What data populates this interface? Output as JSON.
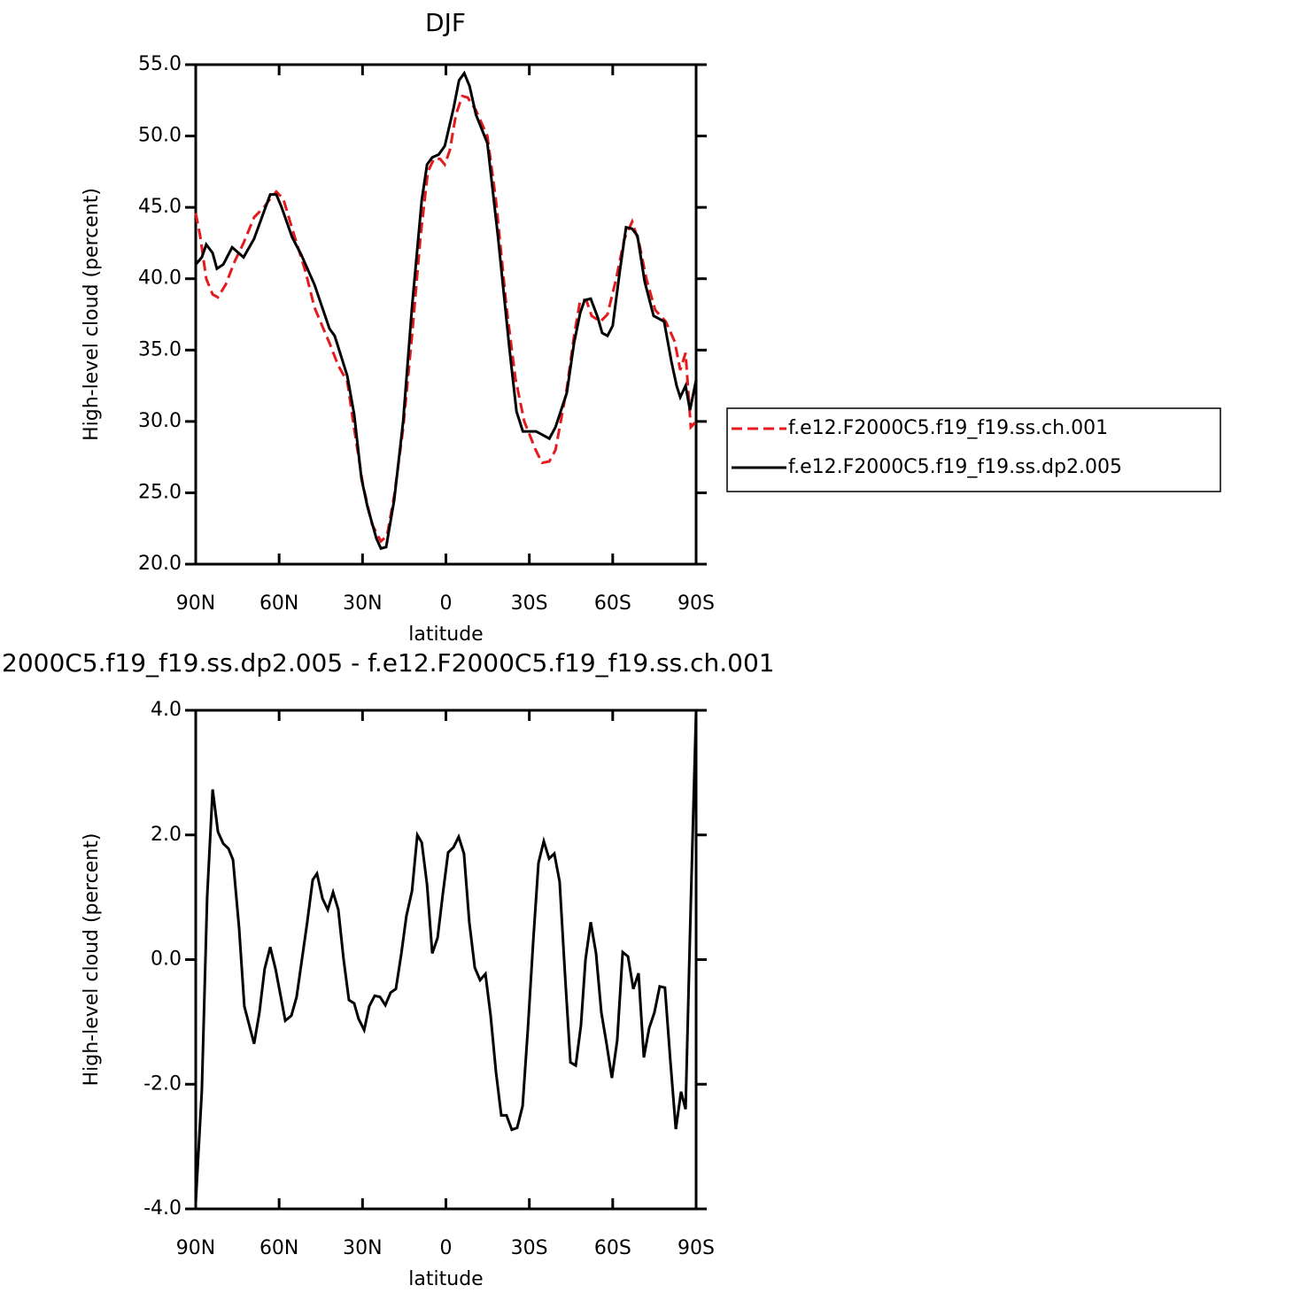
{
  "chart_data": [
    {
      "type": "line",
      "title": "DJF",
      "xlabel": "latitude",
      "ylabel": "High-level cloud (percent)",
      "xlim": [
        90,
        -90
      ],
      "xticks": [
        {
          "value": 90,
          "label": "90N"
        },
        {
          "value": 60,
          "label": "60N"
        },
        {
          "value": 30,
          "label": "30N"
        },
        0,
        {
          "value": -30,
          "label": "30S"
        },
        {
          "value": -60,
          "label": "60S"
        },
        {
          "value": -90,
          "label": "90S"
        }
      ],
      "ylim": [
        20,
        55
      ],
      "yticks": [
        {
          "value": 20,
          "label": "20.0"
        },
        {
          "value": 25,
          "label": "25.0"
        },
        {
          "value": 30,
          "label": "30.0"
        },
        {
          "value": 35,
          "label": "35.0"
        },
        {
          "value": 40,
          "label": "40.0"
        },
        {
          "value": 45,
          "label": "45.0"
        },
        {
          "value": 50,
          "label": "50.0"
        },
        {
          "value": 55,
          "label": "55.0"
        }
      ],
      "legend": "right",
      "series": [
        {
          "name": "f.e12.F2000C5.f19_f19.ss.ch.001",
          "color": "#e41a1c",
          "linestyle": "dashed",
          "x": [
            90,
            88.4,
            86.2,
            83.9,
            82.0,
            79.2,
            76.0,
            72.8,
            69.0,
            65.5,
            63.2,
            61.0,
            58.5,
            55.3,
            50.5,
            47.3,
            44.1,
            41.9,
            38.7,
            35.5,
            33.0,
            29.8,
            26.6,
            23.4,
            21.2,
            18.6,
            15.4,
            12.2,
            9.1,
            6.5,
            4.3,
            2.1,
            0.4,
            -1.4,
            -3.6,
            -5.9,
            -7.8,
            -10.8,
            -14.9,
            -18.0,
            -21.8,
            -25.0,
            -28.2,
            -32.3,
            -34.6,
            -37.2,
            -39.4,
            -43.5,
            -46.1,
            -48.3,
            -50.5,
            -52.4,
            -55.6,
            -58.1,
            -61.0,
            -64.2,
            -67.0,
            -69.5,
            -72.1,
            -75.3,
            -79.1,
            -82.3,
            -84.3,
            -86.2,
            -88.1,
            -90
          ],
          "values": [
            44.6,
            43.0,
            40.0,
            38.9,
            38.7,
            39.6,
            41.2,
            42.5,
            44.3,
            45.0,
            45.6,
            46.1,
            45.6,
            43.5,
            40.5,
            38.0,
            36.5,
            35.5,
            33.9,
            32.8,
            29.5,
            25.5,
            22.8,
            21.6,
            22.0,
            24.8,
            29.5,
            36.0,
            43.0,
            47.5,
            48.4,
            48.4,
            48.0,
            49.0,
            51.5,
            52.8,
            52.7,
            51.8,
            50.0,
            45.5,
            38.0,
            33.0,
            30.0,
            28.0,
            27.1,
            27.2,
            28.0,
            32.3,
            36.0,
            38.5,
            38.5,
            37.4,
            37.0,
            37.5,
            39.8,
            42.8,
            44.0,
            42.5,
            40.0,
            37.8,
            37.0,
            35.6,
            33.6,
            34.8,
            29.6,
            30.0
          ]
        },
        {
          "name": "f.e12.F2000C5.f19_f19.ss.dp2.005",
          "color": "#000000",
          "linestyle": "solid",
          "x": [
            90,
            87.8,
            86.2,
            83.9,
            82.4,
            80.1,
            76.9,
            72.8,
            69.0,
            63.2,
            61.0,
            59.1,
            55.3,
            52.1,
            47.3,
            41.9,
            40.0,
            35.5,
            33.0,
            30.4,
            28.2,
            25.0,
            23.4,
            21.5,
            18.6,
            15.4,
            12.2,
            8.7,
            6.8,
            4.9,
            2.6,
            0.4,
            -2.8,
            -4.7,
            -6.6,
            -8.5,
            -10.8,
            -14.9,
            -18.7,
            -22.9,
            -25.4,
            -27.7,
            -32.4,
            -37.2,
            -39.4,
            -43.5,
            -46.1,
            -48.3,
            -49.9,
            -52.1,
            -54.6,
            -56.2,
            -58.1,
            -60.0,
            -62.6,
            -64.8,
            -67.0,
            -68.9,
            -71.5,
            -74.7,
            -78.5,
            -81.1,
            -83.0,
            -84.3,
            -86.2,
            -87.8,
            -90
          ],
          "values": [
            41.0,
            41.5,
            42.4,
            41.8,
            40.7,
            41.0,
            42.2,
            41.5,
            42.8,
            45.9,
            45.9,
            45.0,
            42.9,
            41.7,
            39.6,
            36.5,
            36.0,
            33.2,
            30.5,
            26.0,
            24.0,
            21.8,
            21.1,
            21.2,
            24.5,
            30.0,
            38.0,
            45.5,
            48.0,
            48.5,
            48.7,
            49.3,
            52.0,
            53.9,
            54.4,
            53.5,
            51.5,
            49.5,
            43.0,
            35.0,
            30.7,
            29.3,
            29.3,
            28.8,
            29.6,
            32.0,
            35.5,
            37.6,
            38.5,
            38.6,
            37.3,
            36.2,
            36.0,
            36.7,
            40.6,
            43.6,
            43.5,
            43.0,
            39.8,
            37.4,
            37.0,
            34.2,
            32.5,
            31.7,
            32.5,
            30.8,
            32.9
          ]
        }
      ]
    },
    {
      "type": "line",
      "title": "2000C5.f19_f19.ss.dp2.005 - f.e12.F2000C5.f19_f19.ss.ch.001",
      "xlabel": "latitude",
      "ylabel": "High-level cloud (percent)",
      "xlim": [
        90,
        -90
      ],
      "xticks": [
        {
          "value": 90,
          "label": "90N"
        },
        {
          "value": 60,
          "label": "60N"
        },
        {
          "value": 30,
          "label": "30N"
        },
        0,
        {
          "value": -30,
          "label": "30S"
        },
        {
          "value": -60,
          "label": "60S"
        },
        {
          "value": -90,
          "label": "90S"
        }
      ],
      "ylim": [
        -4,
        4
      ],
      "yticks": [
        {
          "value": -4,
          "label": "-4.0"
        },
        {
          "value": -2,
          "label": "-2.0"
        },
        {
          "value": 0,
          "label": "0.0"
        },
        {
          "value": 2,
          "label": "2.0"
        },
        {
          "value": 4,
          "label": "4.0"
        }
      ],
      "series": [
        {
          "color": "#000000",
          "linestyle": "solid",
          "x": [
            90,
            87.8,
            85.9,
            83.9,
            82.0,
            80.1,
            78.2,
            76.6,
            74.4,
            72.5,
            69.0,
            67.1,
            65.2,
            63.2,
            61.3,
            59.4,
            57.8,
            55.6,
            53.7,
            51.8,
            49.9,
            47.9,
            46.4,
            44.4,
            42.5,
            40.6,
            38.7,
            36.8,
            34.9,
            33.0,
            31.4,
            29.4,
            27.6,
            25.6,
            23.7,
            21.8,
            19.9,
            18.0,
            16.1,
            14.2,
            12.2,
            10.3,
            8.7,
            6.8,
            4.9,
            3.0,
            1.1,
            -0.8,
            -2.7,
            -4.6,
            -6.5,
            -8.4,
            -10.4,
            -12.3,
            -14.2,
            -16.1,
            -18.0,
            -19.9,
            -21.8,
            -23.7,
            -25.6,
            -27.6,
            -29.5,
            -31.4,
            -33.3,
            -35.2,
            -37.1,
            -39.0,
            -40.9,
            -42.8,
            -44.8,
            -46.7,
            -48.6,
            -50.2,
            -52.1,
            -54.0,
            -55.9,
            -57.8,
            -59.7,
            -61.6,
            -63.6,
            -65.5,
            -67.4,
            -69.3,
            -71.2,
            -73.1,
            -75.0,
            -76.9,
            -78.8,
            -80.7,
            -82.7,
            -84.6,
            -86.2,
            -88.1,
            -90
          ],
          "values": [
            -3.9,
            -2.1,
            1.0,
            2.73,
            2.05,
            1.86,
            1.78,
            1.6,
            0.5,
            -0.75,
            -1.35,
            -0.85,
            -0.15,
            0.2,
            -0.15,
            -0.6,
            -0.98,
            -0.9,
            -0.6,
            0.0,
            0.6,
            1.28,
            1.38,
            0.98,
            0.8,
            1.08,
            0.8,
            0.0,
            -0.65,
            -0.7,
            -0.95,
            -1.13,
            -0.75,
            -0.58,
            -0.6,
            -0.73,
            -0.53,
            -0.47,
            0.08,
            0.7,
            1.1,
            2.0,
            1.88,
            1.2,
            0.1,
            0.35,
            1.05,
            1.72,
            1.8,
            1.97,
            1.7,
            0.6,
            -0.13,
            -0.33,
            -0.23,
            -0.9,
            -1.8,
            -2.5,
            -2.5,
            -2.73,
            -2.7,
            -2.35,
            -1.1,
            0.3,
            1.55,
            1.9,
            1.62,
            1.7,
            1.25,
            -0.2,
            -1.65,
            -1.7,
            -1.05,
            0.0,
            0.6,
            0.1,
            -0.85,
            -1.35,
            -1.9,
            -1.3,
            0.12,
            0.05,
            -0.47,
            -0.22,
            -1.57,
            -1.1,
            -0.85,
            -0.43,
            -0.45,
            -1.6,
            -2.72,
            -2.12,
            -2.4,
            0.9,
            4.0
          ]
        }
      ]
    }
  ]
}
